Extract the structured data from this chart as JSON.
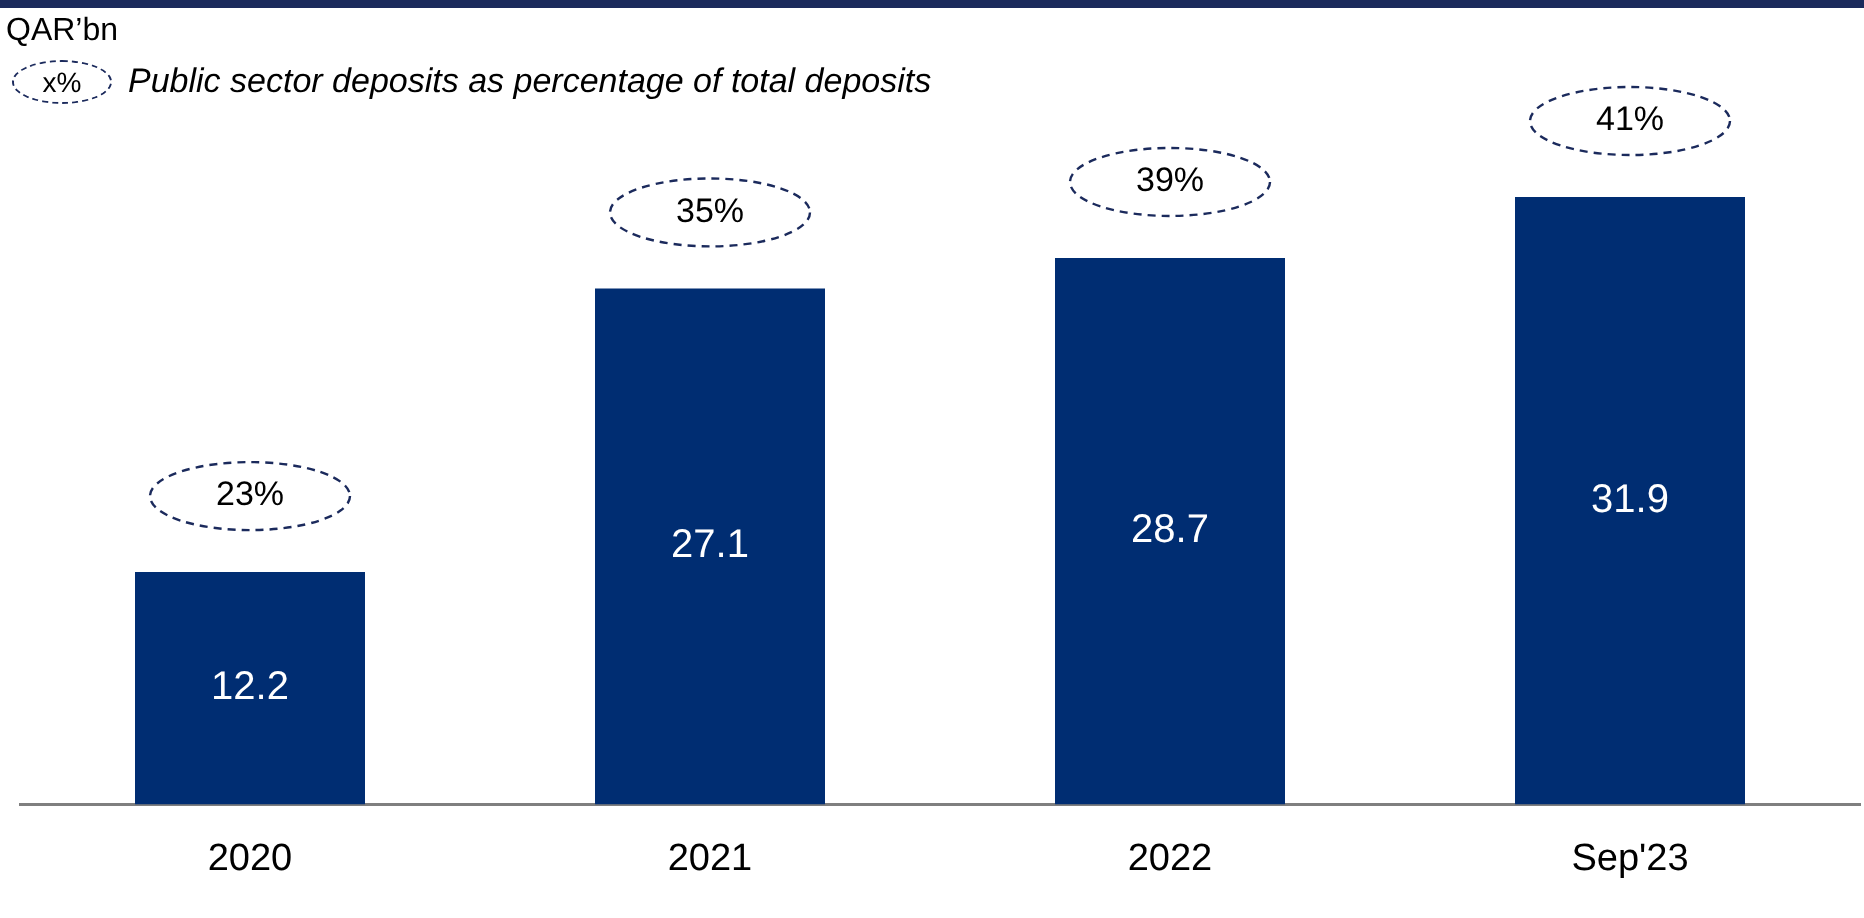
{
  "chart_data": {
    "type": "bar",
    "ylabel": "QAR’bn",
    "categories": [
      "2020",
      "2021",
      "2022",
      "Sep'23"
    ],
    "values": [
      12.2,
      27.1,
      28.7,
      31.9
    ],
    "color": "#002d72",
    "tick_labels": "x",
    "grid": false,
    "data_labels": true,
    "annotations": [
      "x%",
      "Public sector deposits as percentage of total deposits",
      {
        "text": "23%",
        "x": "2020",
        "y": 12.2
      },
      {
        "text": "35%",
        "x": "2021",
        "y": 27.1
      },
      {
        "text": "39%",
        "x": "2022",
        "y": 28.7
      },
      {
        "text": "41%",
        "x": "Sep'23",
        "y": 31.9
      }
    ]
  }
}
